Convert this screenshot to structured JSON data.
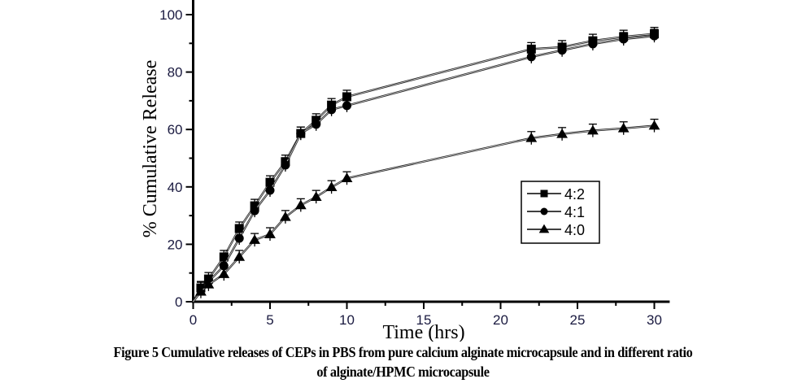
{
  "chart_data": {
    "type": "line",
    "title": "",
    "xlabel": "Time (hrs)",
    "ylabel": "% Cumulative Release",
    "xlim": [
      0,
      31
    ],
    "ylim": [
      0,
      100
    ],
    "xticks": [
      0,
      5,
      10,
      15,
      20,
      25,
      30
    ],
    "yticks": [
      0,
      20,
      40,
      60,
      80,
      100
    ],
    "grid": false,
    "legend_position": "center-right",
    "x": [
      0,
      0.5,
      1,
      2,
      3,
      4,
      5,
      6,
      7,
      8,
      9,
      10,
      22,
      24,
      26,
      28,
      30
    ],
    "series": [
      {
        "name": "4:2",
        "marker": "square",
        "values": [
          0,
          4.8,
          7.9,
          15.6,
          25.5,
          33.4,
          41.6,
          48.8,
          58.6,
          63.2,
          68.5,
          71.4,
          88.0,
          88.7,
          90.9,
          92.3,
          93.3
        ]
      },
      {
        "name": "4:1",
        "marker": "circle",
        "values": [
          0,
          4.5,
          7.0,
          12.5,
          22.1,
          31.7,
          38.8,
          47.6,
          58.6,
          61.8,
          66.9,
          68.3,
          85.3,
          87.6,
          89.8,
          91.5,
          92.6
        ]
      },
      {
        "name": "4:0",
        "marker": "triangle",
        "values": [
          0,
          3.5,
          6.0,
          9.6,
          15.6,
          21.5,
          23.5,
          29.5,
          33.6,
          36.5,
          39.9,
          43.0,
          57.0,
          58.4,
          59.6,
          60.4,
          61.3
        ]
      }
    ]
  },
  "caption": {
    "line1": "Figure 5 Cumulative releases of CEPs in PBS from pure calcium alginate microcapsule and in different ratio",
    "line2": "of alginate/HPMC microcapsule"
  }
}
